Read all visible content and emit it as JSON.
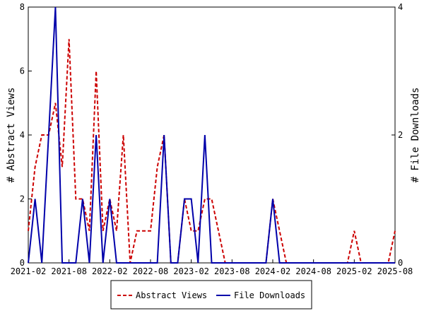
{
  "chart_data": {
    "type": "line",
    "x": [
      "2021-02",
      "2021-03",
      "2021-04",
      "2021-05",
      "2021-06",
      "2021-07",
      "2021-08",
      "2021-09",
      "2021-10",
      "2021-11",
      "2021-12",
      "2022-01",
      "2022-02",
      "2022-03",
      "2022-04",
      "2022-05",
      "2022-06",
      "2022-07",
      "2022-08",
      "2022-09",
      "2022-10",
      "2022-11",
      "2022-12",
      "2023-01",
      "2023-02",
      "2023-03",
      "2023-04",
      "2023-05",
      "2023-06",
      "2023-07",
      "2023-08",
      "2023-09",
      "2023-10",
      "2023-11",
      "2023-12",
      "2024-01",
      "2024-02",
      "2024-03",
      "2024-04",
      "2024-05",
      "2024-06",
      "2024-07",
      "2024-08",
      "2024-09",
      "2024-10",
      "2024-11",
      "2024-12",
      "2025-01",
      "2025-02",
      "2025-03",
      "2025-04",
      "2025-05",
      "2025-06",
      "2025-07",
      "2025-08"
    ],
    "series": [
      {
        "name": "Abstract Views",
        "axis": "left",
        "color": "#cc0000",
        "dash": "dashed",
        "values": [
          1,
          3,
          4,
          4,
          5,
          3,
          7,
          2,
          2,
          1,
          6,
          1,
          2,
          1,
          4,
          0,
          1,
          1,
          1,
          3,
          4,
          0,
          0,
          2,
          1,
          1,
          2,
          2,
          1,
          0,
          0,
          0,
          0,
          0,
          0,
          0,
          2,
          1,
          0,
          0,
          0,
          0,
          0,
          0,
          0,
          0,
          0,
          0,
          1,
          0,
          0,
          0,
          0,
          0,
          1
        ]
      },
      {
        "name": "File Downloads",
        "axis": "right",
        "color": "#0000aa",
        "dash": "solid",
        "values": [
          0,
          1,
          0,
          2,
          4,
          0,
          0,
          0,
          1,
          0,
          2,
          0,
          1,
          0,
          0,
          0,
          0,
          0,
          0,
          0,
          2,
          0,
          0,
          1,
          1,
          0,
          2,
          0,
          0,
          0,
          0,
          0,
          0,
          0,
          0,
          0,
          1,
          0,
          0,
          0,
          0,
          0,
          0,
          0,
          0,
          0,
          0,
          0,
          0,
          0,
          0,
          0,
          0,
          0,
          0
        ]
      }
    ],
    "y_left": {
      "label": "# Abstract Views",
      "range": [
        0,
        8
      ],
      "ticks": [
        "0",
        "2",
        "4",
        "6",
        "8"
      ]
    },
    "y_right": {
      "label": "# File Downloads",
      "range": [
        0,
        4
      ],
      "ticks": [
        "0",
        "2",
        "4"
      ]
    },
    "x_ticks": [
      "2021-02",
      "2021-08",
      "2022-02",
      "2022-08",
      "2023-02",
      "2023-08",
      "2024-02",
      "2024-08",
      "2025-02",
      "2025-08"
    ],
    "grid": false,
    "legend": {
      "placement": "bottom-center",
      "entries": [
        "Abstract Views",
        "File Downloads"
      ]
    }
  }
}
